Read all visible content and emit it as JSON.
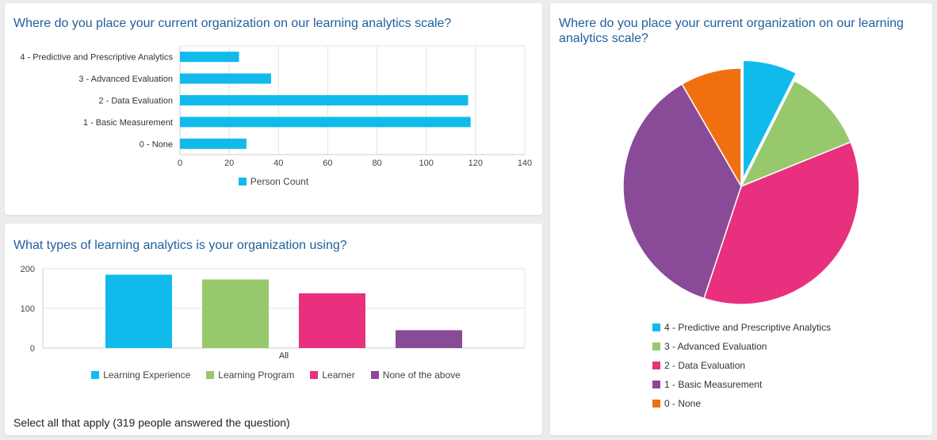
{
  "charts": [
    {
      "id": "scale-bar",
      "title": "Where do you place your current organization on our learning analytics scale?"
    },
    {
      "id": "types-column",
      "title": "What types of learning analytics is your organization using?",
      "note": "Select all that apply (319 people answered the question)"
    },
    {
      "id": "scale-pie",
      "title": "Where do you place your current organization on our learning analytics scale?"
    }
  ],
  "chart_data": [
    {
      "type": "bar",
      "orientation": "horizontal",
      "title": "Where do you place your current organization on our learning analytics scale?",
      "categories": [
        "4 - Predictive and Prescriptive Analytics",
        "3 - Advanced Evaluation",
        "2 - Data Evaluation",
        "1 - Basic Measurement",
        "0 - None"
      ],
      "series": [
        {
          "name": "Person Count",
          "values": [
            24,
            37,
            117,
            118,
            27
          ],
          "color": "#10bbec"
        }
      ],
      "xlim": [
        0,
        140
      ],
      "xticks": [
        0,
        20,
        40,
        60,
        80,
        100,
        120,
        140
      ],
      "grid": true,
      "legend": "bottom"
    },
    {
      "type": "bar",
      "orientation": "vertical",
      "title": "What types of learning analytics is your organization using?",
      "categories": [
        "All"
      ],
      "series": [
        {
          "name": "Learning Experience",
          "values": [
            185
          ],
          "color": "#10bbec"
        },
        {
          "name": "Learning Program",
          "values": [
            173
          ],
          "color": "#98c86c"
        },
        {
          "name": "Learner",
          "values": [
            138
          ],
          "color": "#e8307f"
        },
        {
          "name": "None of the above",
          "values": [
            45
          ],
          "color": "#894a98"
        }
      ],
      "ylim": [
        0,
        200
      ],
      "yticks": [
        0,
        100,
        200
      ],
      "grid": true,
      "legend": "bottom"
    },
    {
      "type": "pie",
      "title": "Where do you place your current organization on our learning analytics scale?",
      "labels": [
        "4 - Predictive and Prescriptive Analytics",
        "3 - Advanced Evaluation",
        "2 - Data Evaluation",
        "1 - Basic Measurement",
        "0 - None"
      ],
      "values": [
        24,
        37,
        117,
        118,
        27
      ],
      "colors": [
        "#10bbec",
        "#98c86c",
        "#e8307f",
        "#894a98",
        "#f07010"
      ],
      "exploded": [
        true,
        false,
        false,
        false,
        false
      ],
      "legend": "bottom"
    }
  ]
}
